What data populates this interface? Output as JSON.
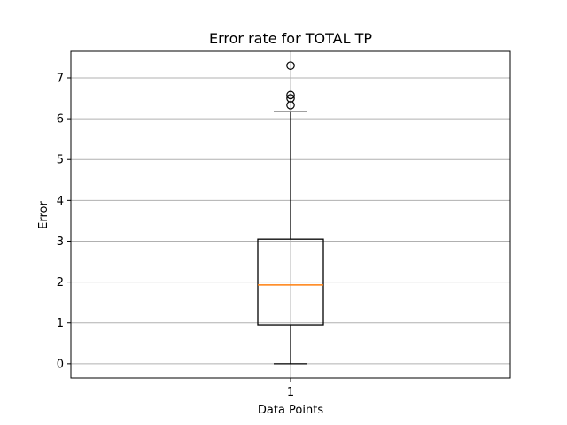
{
  "chart_data": {
    "type": "box",
    "title": "Error rate for TOTAL TP",
    "xlabel": "Data Points",
    "ylabel": "Error",
    "categories": [
      "1"
    ],
    "ylim": [
      -0.35,
      7.65
    ],
    "yticks": [
      0,
      1,
      2,
      3,
      4,
      5,
      6,
      7
    ],
    "grid": true,
    "boxes": [
      {
        "category": "1",
        "whisker_low": 0.0,
        "q1": 0.95,
        "median": 1.93,
        "q3": 3.05,
        "whisker_high": 6.17,
        "outliers": [
          6.33,
          6.5,
          6.58,
          7.3
        ]
      }
    ],
    "colors": {
      "box": "#000000",
      "median": "#ff7f0e",
      "grid": "#b0b0b0",
      "outlier_edge": "#000000"
    }
  }
}
